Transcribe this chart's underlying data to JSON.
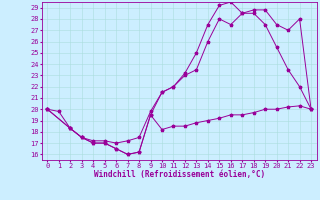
{
  "xlabel": "Windchill (Refroidissement éolien,°C)",
  "bg_color": "#cceeff",
  "line_color": "#990099",
  "xlim": [
    -0.5,
    23.5
  ],
  "ylim": [
    15.5,
    29.5
  ],
  "xticks": [
    0,
    1,
    2,
    3,
    4,
    5,
    6,
    7,
    8,
    9,
    10,
    11,
    12,
    13,
    14,
    15,
    16,
    17,
    18,
    19,
    20,
    21,
    22,
    23
  ],
  "yticks": [
    16,
    17,
    18,
    19,
    20,
    21,
    22,
    23,
    24,
    25,
    26,
    27,
    28,
    29
  ],
  "line1_x": [
    0,
    1,
    2,
    3,
    4,
    5,
    6,
    7,
    8,
    9,
    10,
    11,
    12,
    13,
    14,
    15,
    16,
    17,
    18,
    19,
    20,
    21,
    22,
    23
  ],
  "line1_y": [
    20.0,
    19.8,
    18.3,
    17.5,
    17.0,
    17.0,
    16.5,
    16.0,
    16.2,
    19.5,
    18.2,
    18.5,
    18.5,
    18.8,
    19.0,
    19.2,
    19.5,
    19.5,
    19.7,
    20.0,
    20.0,
    20.2,
    20.3,
    20.0
  ],
  "line2_x": [
    0,
    2,
    3,
    4,
    5,
    6,
    7,
    8,
    9,
    10,
    11,
    12,
    13,
    14,
    15,
    16,
    17,
    18,
    19,
    20,
    21,
    22,
    23
  ],
  "line2_y": [
    20.0,
    18.3,
    17.5,
    17.0,
    17.0,
    16.5,
    16.0,
    16.2,
    19.5,
    21.5,
    22.0,
    23.0,
    23.5,
    26.0,
    28.0,
    27.5,
    28.5,
    28.5,
    27.5,
    25.5,
    23.5,
    22.0,
    20.0
  ],
  "line3_x": [
    0,
    2,
    3,
    4,
    5,
    6,
    7,
    8,
    9,
    10,
    11,
    12,
    13,
    14,
    15,
    16,
    17,
    18,
    19,
    20,
    21,
    22,
    23
  ],
  "line3_y": [
    20.0,
    18.3,
    17.5,
    17.2,
    17.2,
    17.0,
    17.2,
    17.5,
    19.8,
    21.5,
    22.0,
    23.2,
    25.0,
    27.5,
    29.2,
    29.5,
    28.5,
    28.8,
    28.8,
    27.5,
    27.0,
    28.0,
    20.0
  ],
  "grid_color": "#aadddd",
  "xlabel_fontsize": 5.5,
  "tick_fontsize": 5.0
}
